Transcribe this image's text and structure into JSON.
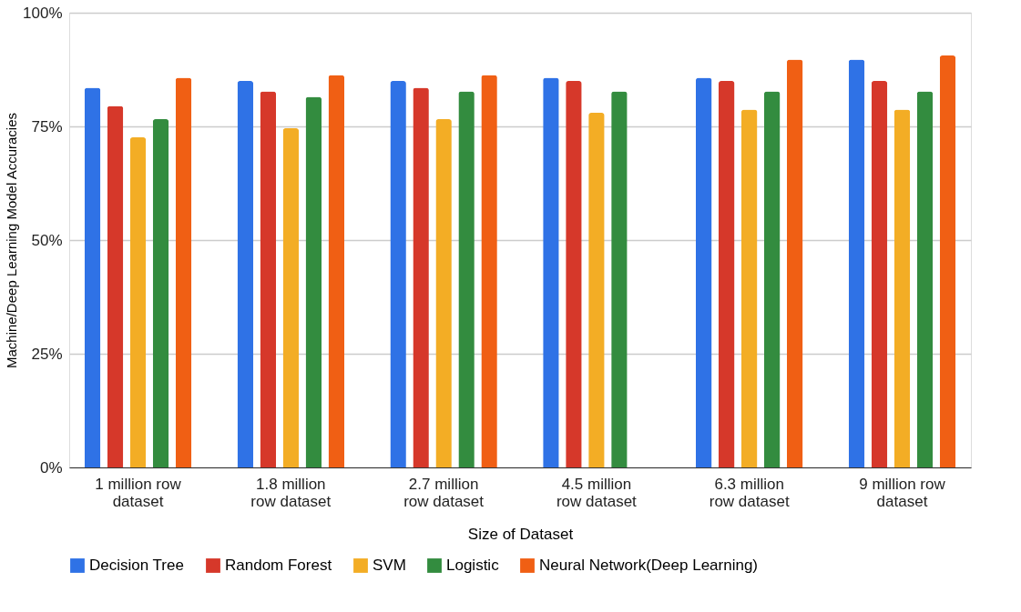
{
  "chart_data": {
    "type": "bar",
    "xlabel": "Size of Dataset",
    "ylabel": "Machine/Deep Learning Model Accuracies",
    "categories": [
      "1 million row dataset",
      "1.8 million row dataset",
      "2.7 million row dataset",
      "4.5 million row dataset",
      "6.3 million row dataset",
      "9 million row dataset"
    ],
    "series": [
      {
        "name": "Decision Tree",
        "color": "#2f72e6",
        "values": [
          83.5,
          85,
          85,
          85.7,
          85.7,
          89.7
        ]
      },
      {
        "name": "Random Forest",
        "color": "#d6382a",
        "values": [
          79.5,
          82.7,
          83.5,
          85,
          85,
          85
        ]
      },
      {
        "name": "SVM",
        "color": "#f3ad25",
        "values": [
          72.6,
          74.6,
          76.6,
          78,
          78.7,
          78.7
        ]
      },
      {
        "name": "Logistic",
        "color": "#338c3f",
        "values": [
          76.6,
          81.5,
          82.7,
          82.7,
          82.7,
          82.7
        ]
      },
      {
        "name": "Neural Network(Deep Learning)",
        "color": "#f05f14",
        "values": [
          85.7,
          86.3,
          86.3,
          null,
          89.7,
          90.6
        ]
      }
    ],
    "ylim": [
      0,
      100
    ],
    "yticks": [
      {
        "value": 0,
        "label": "0%"
      },
      {
        "value": 25,
        "label": "25%"
      },
      {
        "value": 50,
        "label": "50%"
      },
      {
        "value": 75,
        "label": "75%"
      },
      {
        "value": 100,
        "label": "100%"
      }
    ],
    "grid": "y",
    "legend": "bottom"
  }
}
